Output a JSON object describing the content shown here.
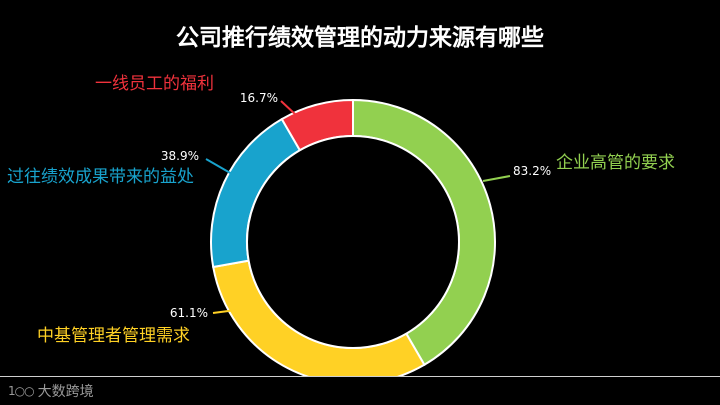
{
  "chart_data": {
    "type": "pie",
    "title": "公司推行绩效管理的动力来源有哪些",
    "series": [
      {
        "name": "企业高管的要求",
        "value": 83.2,
        "display": "83.2%",
        "color": "#92d050"
      },
      {
        "name": "中基管理者管理需求",
        "value": 61.1,
        "display": "61.1%",
        "color": "#ffd125"
      },
      {
        "name": "过往绩效成果带来的益处",
        "value": 38.9,
        "display": "38.9%",
        "color": "#18a3cd"
      },
      {
        "name": "一线员工的福利",
        "value": 16.7,
        "display": "16.7%",
        "color": "#f0323c"
      }
    ],
    "legend": "none",
    "label_colors": {
      "value": "#ffffff",
      "ring_stroke": "#ffffff"
    }
  },
  "footer": {
    "logo_mark": "1○○",
    "logo_text": "大数跨境"
  }
}
